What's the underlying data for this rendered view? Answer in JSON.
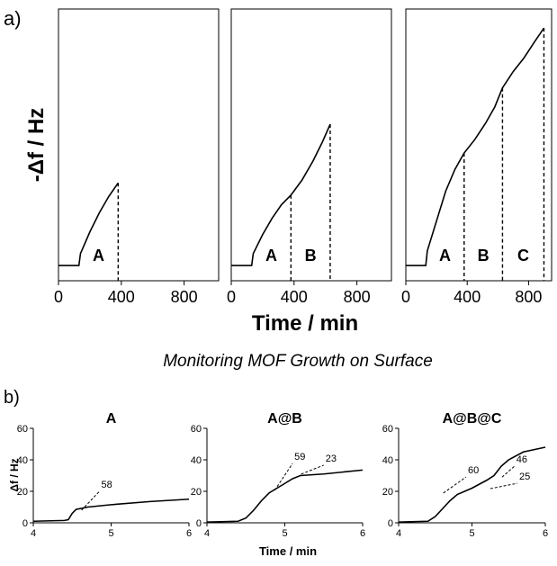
{
  "panel_labels": [
    "a)",
    "b)"
  ],
  "a_ylabel": "-Δf / Hz",
  "a_xlabel": "Time / min",
  "caption": "Monitoring MOF Growth on Surface",
  "b_ylabel": "Δf / Hz",
  "b_xlabel": "Time / min",
  "chart_data": [
    {
      "type": "line",
      "color": "#000000",
      "xlim": [
        0,
        1020
      ],
      "ylim": [
        0,
        100
      ],
      "xticks": [
        0,
        400,
        800
      ],
      "x": [
        0,
        130,
        140,
        200,
        260,
        320,
        380
      ],
      "values": [
        5.6,
        5.6,
        10,
        18,
        25,
        31,
        36
      ],
      "segments": [
        {
          "label": "A",
          "end": 380
        }
      ]
    },
    {
      "type": "line",
      "color": "#000000",
      "xlim": [
        0,
        1020
      ],
      "ylim": [
        0,
        100
      ],
      "xticks": [
        0,
        400,
        800
      ],
      "x": [
        0,
        130,
        140,
        200,
        260,
        320,
        380,
        450,
        520,
        580,
        630
      ],
      "values": [
        5.6,
        5.6,
        10,
        17,
        23,
        28,
        31.5,
        37,
        44,
        51,
        57.6
      ],
      "segments": [
        {
          "label": "A",
          "end": 380
        },
        {
          "label": "B",
          "end": 630
        }
      ]
    },
    {
      "type": "line",
      "color": "#000000",
      "xlim": [
        0,
        950
      ],
      "ylim": [
        0,
        100
      ],
      "xticks": [
        0,
        400,
        800
      ],
      "x": [
        0,
        130,
        140,
        200,
        260,
        320,
        380,
        450,
        520,
        580,
        630,
        700,
        770,
        840,
        900
      ],
      "values": [
        5.6,
        5.6,
        11,
        22,
        33,
        41,
        47,
        52,
        58,
        64,
        71,
        77,
        82,
        88,
        93
      ],
      "segments": [
        {
          "label": "A",
          "end": 380
        },
        {
          "label": "B",
          "end": 630
        },
        {
          "label": "C",
          "end": 900
        }
      ]
    },
    {
      "type": "line",
      "title": "A",
      "color": "#000000",
      "xlim": [
        4,
        6
      ],
      "ylim": [
        0,
        60
      ],
      "xticks": [
        4,
        5,
        6
      ],
      "yticks": [
        0,
        20,
        40,
        60
      ],
      "x": [
        4,
        4.4,
        4.45,
        4.5,
        4.55,
        4.7,
        5.0,
        5.5,
        6
      ],
      "values": [
        1,
        1.5,
        2,
        6,
        8.5,
        10,
        11.5,
        13.5,
        15
      ],
      "tangents": [
        {
          "slope": 58,
          "x": [
            4.62,
            4.85
          ],
          "y": [
            8,
            20
          ]
        }
      ]
    },
    {
      "type": "line",
      "title": "A@B",
      "color": "#000000",
      "xlim": [
        4,
        6
      ],
      "ylim": [
        0,
        60
      ],
      "xticks": [
        4,
        5,
        6
      ],
      "yticks": [
        0,
        20,
        40,
        60
      ],
      "x": [
        4,
        4.4,
        4.5,
        4.6,
        4.7,
        4.8,
        4.9,
        5.0,
        5.1,
        5.2,
        5.5,
        6
      ],
      "values": [
        0.5,
        1,
        3,
        8,
        14,
        19,
        22,
        25,
        28,
        30,
        31,
        33.5
      ],
      "tangents": [
        {
          "slope": 59,
          "x": [
            4.87,
            5.1
          ],
          "y": [
            20.6,
            37.7
          ]
        },
        {
          "slope": 23,
          "x": [
            5.21,
            5.5
          ],
          "y": [
            30.9,
            36.6
          ]
        }
      ]
    },
    {
      "type": "line",
      "title": "A@B@C",
      "color": "#000000",
      "xlim": [
        4,
        6
      ],
      "ylim": [
        0,
        60
      ],
      "xticks": [
        4,
        5,
        6
      ],
      "yticks": [
        0,
        20,
        40,
        60
      ],
      "x": [
        4,
        4.4,
        4.5,
        4.6,
        4.7,
        4.8,
        5.0,
        5.2,
        5.3,
        5.4,
        5.5,
        5.7,
        6
      ],
      "values": [
        0.5,
        1,
        4,
        9,
        14,
        18,
        22,
        27,
        30,
        36,
        40,
        45,
        48
      ],
      "tangents": [
        {
          "slope": 60,
          "x": [
            4.61,
            4.92
          ],
          "y": [
            18.9,
            29.1
          ]
        },
        {
          "slope": 46,
          "x": [
            5.41,
            5.58
          ],
          "y": [
            29,
            36
          ]
        },
        {
          "slope": 25,
          "x": [
            5.25,
            5.62
          ],
          "y": [
            21.7,
            25.1
          ]
        }
      ]
    }
  ]
}
